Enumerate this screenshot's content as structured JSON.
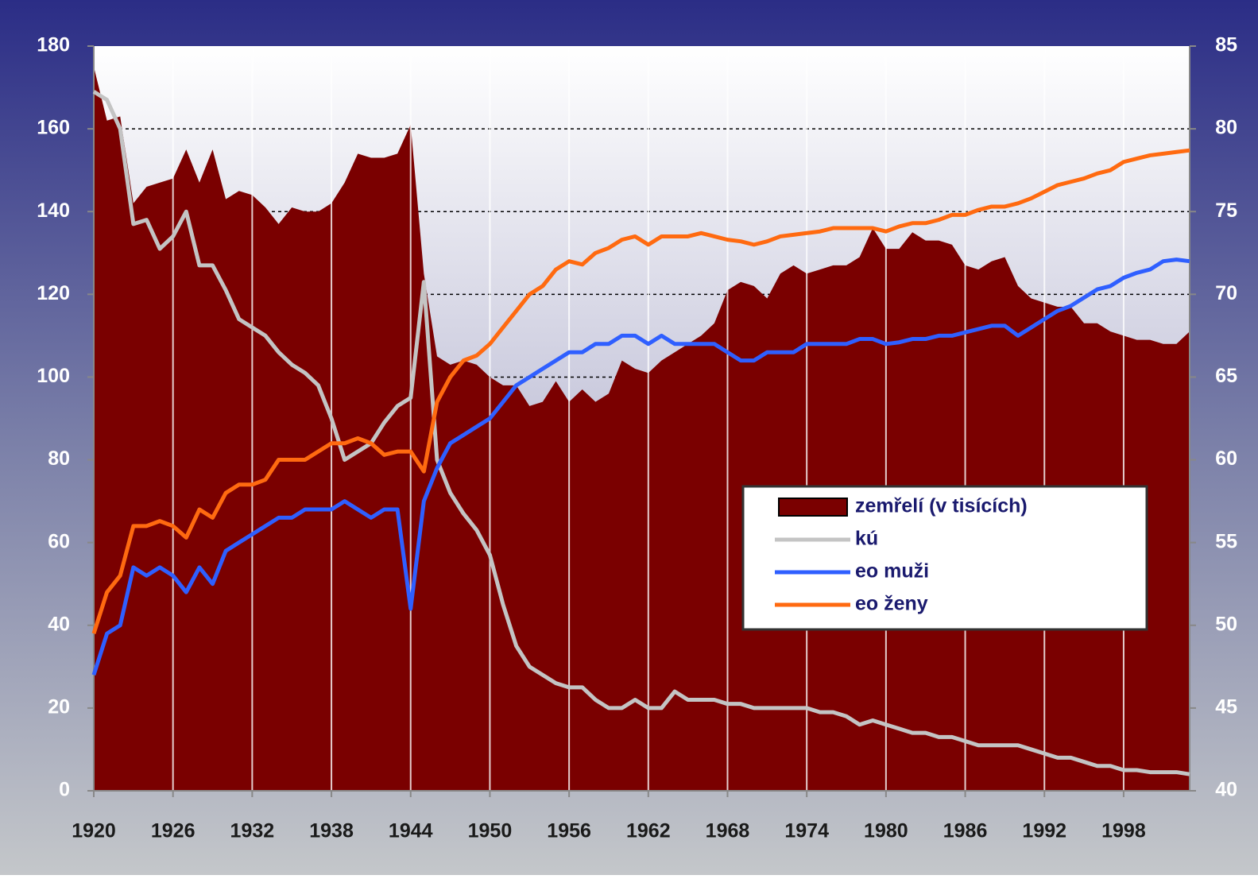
{
  "chart_data": {
    "type": "line",
    "x": [
      1920,
      1921,
      1922,
      1923,
      1924,
      1925,
      1926,
      1927,
      1928,
      1929,
      1930,
      1931,
      1932,
      1933,
      1934,
      1935,
      1936,
      1937,
      1938,
      1939,
      1940,
      1941,
      1942,
      1943,
      1944,
      1945,
      1946,
      1947,
      1948,
      1949,
      1950,
      1951,
      1952,
      1953,
      1954,
      1955,
      1956,
      1957,
      1958,
      1959,
      1960,
      1961,
      1962,
      1963,
      1964,
      1965,
      1966,
      1967,
      1968,
      1969,
      1970,
      1971,
      1972,
      1973,
      1974,
      1975,
      1976,
      1977,
      1978,
      1979,
      1980,
      1981,
      1982,
      1983,
      1984,
      1985,
      1986,
      1987,
      1988,
      1989,
      1990,
      1991,
      1992,
      1993,
      1994,
      1995,
      1996,
      1997,
      1998,
      1999,
      2000,
      2001,
      2002,
      2003
    ],
    "xlim": [
      1920,
      2003
    ],
    "xticks": [
      1920,
      1926,
      1932,
      1938,
      1944,
      1950,
      1956,
      1962,
      1968,
      1974,
      1980,
      1986,
      1992,
      1998
    ],
    "ylim": [
      0,
      180
    ],
    "yticks": [
      0,
      20,
      40,
      60,
      80,
      100,
      120,
      140,
      160,
      180
    ],
    "y2lim": [
      40,
      85
    ],
    "y2ticks": [
      40,
      45,
      50,
      55,
      60,
      65,
      70,
      75,
      80,
      85
    ],
    "grid": true,
    "series": [
      {
        "name": "zemřelí (v tisících)",
        "type": "area",
        "color": "#7a0000",
        "values": [
          175,
          162,
          163,
          142,
          146,
          147,
          148,
          155,
          147,
          155,
          143,
          145,
          144,
          141,
          137,
          141,
          140,
          140,
          142,
          147,
          154,
          153,
          153,
          154,
          161,
          125,
          105,
          103,
          104,
          103,
          100,
          98,
          98,
          93,
          94,
          99,
          94,
          97,
          94,
          96,
          104,
          102,
          101,
          104,
          106,
          108,
          110,
          113,
          121,
          123,
          122,
          119,
          125,
          127,
          125,
          126,
          127,
          127,
          129,
          136,
          131,
          131,
          135,
          133,
          133,
          132,
          127,
          126,
          128,
          129,
          122,
          119,
          118,
          117,
          117,
          113,
          113,
          111,
          110,
          109,
          109,
          108,
          108,
          111
        ]
      },
      {
        "name": "kú",
        "color": "#c4c4c4",
        "values": [
          169,
          167,
          160,
          137,
          138,
          131,
          134,
          140,
          127,
          127,
          121,
          114,
          112,
          110,
          106,
          103,
          101,
          98,
          90,
          80,
          82,
          84,
          89,
          93,
          95,
          123,
          80,
          72,
          67,
          63,
          57,
          45,
          35,
          30,
          28,
          26,
          25,
          25,
          22,
          20,
          20,
          22,
          20,
          20,
          24,
          22,
          22,
          22,
          21,
          21,
          20,
          20,
          20,
          20,
          20,
          19,
          19,
          18,
          16,
          17,
          16,
          15,
          14,
          14,
          13,
          13,
          12,
          11,
          11,
          11,
          11,
          10,
          9,
          8,
          8,
          7,
          6,
          6,
          5,
          5,
          4.5,
          4.5,
          4.5,
          4
        ]
      },
      {
        "name": "eo muži",
        "color": "#2f5fff",
        "axis": "y2",
        "values": [
          47,
          49.5,
          50,
          53.5,
          53,
          53.5,
          53,
          52,
          53.5,
          52.5,
          54.5,
          55,
          55.5,
          56,
          56.5,
          56.5,
          57,
          57,
          57,
          57.5,
          57,
          56.5,
          57,
          57,
          51,
          57.5,
          59.5,
          61,
          61.5,
          62,
          62.5,
          63.5,
          64.5,
          65,
          65.5,
          66,
          66.5,
          66.5,
          67,
          67,
          67.5,
          67.5,
          67,
          67.5,
          67,
          67,
          67,
          67,
          66.5,
          66,
          66,
          66.5,
          66.5,
          66.5,
          67,
          67,
          67,
          67,
          67.3,
          67.3,
          67,
          67.1,
          67.3,
          67.3,
          67.5,
          67.5,
          67.7,
          67.9,
          68.1,
          68.1,
          67.5,
          68,
          68.5,
          69,
          69.3,
          69.8,
          70.3,
          70.5,
          71,
          71.3,
          71.5,
          72,
          72.1,
          72
        ]
      },
      {
        "name": "eo ženy",
        "color": "#ff6a10",
        "axis": "y2",
        "values": [
          49.5,
          52,
          53,
          56,
          56,
          56.3,
          56,
          55.3,
          57,
          56.5,
          58,
          58.5,
          58.5,
          58.8,
          60,
          60,
          60,
          60.5,
          61,
          61,
          61.3,
          61,
          60.3,
          60.5,
          60.5,
          59.3,
          63.5,
          65,
          66,
          66.3,
          67,
          68,
          69,
          70,
          70.5,
          71.5,
          72,
          71.8,
          72.5,
          72.8,
          73.3,
          73.5,
          73,
          73.5,
          73.5,
          73.5,
          73.7,
          73.5,
          73.3,
          73.2,
          73,
          73.2,
          73.5,
          73.6,
          73.7,
          73.8,
          74,
          74,
          74,
          74,
          73.8,
          74.1,
          74.3,
          74.3,
          74.5,
          74.8,
          74.8,
          75.1,
          75.3,
          75.3,
          75.5,
          75.8,
          76.2,
          76.6,
          76.8,
          77,
          77.3,
          77.5,
          78,
          78.2,
          78.4,
          78.5,
          78.6,
          78.7
        ]
      }
    ]
  }
}
